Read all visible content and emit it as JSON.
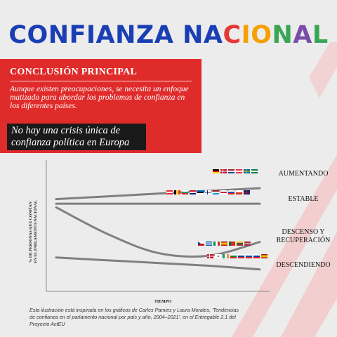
{
  "header": {
    "title": "CONFIANZA NACIONAL",
    "title_letters": [
      {
        "ch": "C",
        "color": "#1a3fb5"
      },
      {
        "ch": "O",
        "color": "#1a3fb5"
      },
      {
        "ch": "N",
        "color": "#1a3fb5"
      },
      {
        "ch": "F",
        "color": "#1a3fb5"
      },
      {
        "ch": "I",
        "color": "#1a3fb5"
      },
      {
        "ch": "A",
        "color": "#1a3fb5"
      },
      {
        "ch": "N",
        "color": "#1a3fb5"
      },
      {
        "ch": "Z",
        "color": "#1a3fb5"
      },
      {
        "ch": "A",
        "color": "#1a3fb5"
      },
      {
        "ch": " ",
        "color": "#1a3fb5"
      },
      {
        "ch": "N",
        "color": "#1a3fb5"
      },
      {
        "ch": "A",
        "color": "#1a3fb5"
      },
      {
        "ch": "C",
        "color": "#e53935"
      },
      {
        "ch": "I",
        "color": "#f5a000"
      },
      {
        "ch": "O",
        "color": "#f5a000"
      },
      {
        "ch": "N",
        "color": "#3aa655"
      },
      {
        "ch": "A",
        "color": "#7a4ea8"
      },
      {
        "ch": "L",
        "color": "#3aa655"
      }
    ]
  },
  "panel": {
    "heading": "CONCLUSIÓN PRINCIPAL",
    "text": "Aunque existen preocupaciones, se necesita un enfoque matizado para abordar los problemas de confianza en los diferentes países.",
    "callout": "No hay una crisis única de confianza política en Europa",
    "color": "#e02b2b"
  },
  "chart_data": {
    "type": "line",
    "ylabel": "% DE PERSONAS QUE CONFÍAN EN EL PARLAMENTO NACIONAL",
    "xlabel": "TIEMPO",
    "x": [
      0,
      0.25,
      0.5,
      0.75,
      1
    ],
    "series": [
      {
        "name": "AUMENTANDO",
        "values": [
          78,
          81,
          84,
          87,
          90
        ]
      },
      {
        "name": "ESTABLE",
        "values": [
          73,
          73,
          73,
          73,
          73
        ]
      },
      {
        "name": "DESCENSO Y RECUPERACIÓN",
        "values": [
          69,
          40,
          19,
          16,
          31
        ]
      },
      {
        "name": "DESCENDIENDO",
        "values": [
          14,
          11,
          8,
          5,
          1
        ]
      }
    ],
    "line_color": "#808080"
  },
  "note": "Esta ilustración está inspirada en los gráficos de Carles Pamies y Laura Morales, 'Tendencias de confianza en el parlamento nacional por país y año, 2004–2021', en el Entregable 2.1 del Proyecto ActEU"
}
